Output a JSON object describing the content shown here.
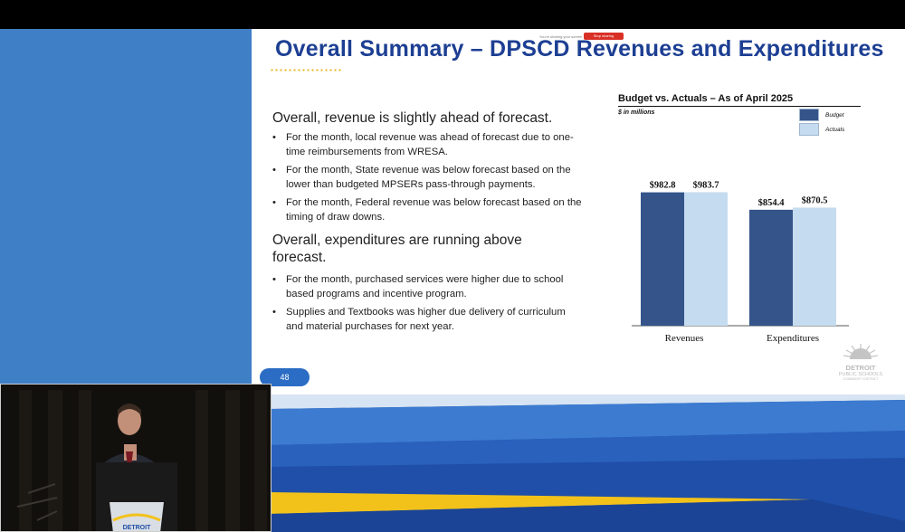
{
  "screen_share": {
    "notice": "You're sharing your screen",
    "stop_label": "Stop sharing"
  },
  "slide": {
    "title": "Overall Summary – DPSCD Revenues and Expenditures",
    "revenue_heading": "Overall, revenue is slightly ahead of forecast.",
    "revenue_bullets": [
      "For the month, local revenue was ahead of forecast due to one-time reimbursements from WRESA.",
      "For the month, State revenue was below forecast based on the lower than budgeted MPSERs pass-through payments.",
      "For the month, Federal revenue was below forecast based on the timing of draw downs."
    ],
    "expenditure_heading": "Overall, expenditures are running above forecast.",
    "expenditure_bullets": [
      "For the month, purchased services were higher due to school based programs and incentive program.",
      "Supplies and Textbooks was higher due delivery of curriculum and material purchases for next year."
    ],
    "page_number": "48",
    "logo": {
      "name": "DETROIT",
      "sub": "PUBLIC SCHOOLS",
      "tagline": "COMMUNITY DISTRICT"
    }
  },
  "chart_data": {
    "type": "bar",
    "title": "Budget vs. Actuals – As of April 2025",
    "subtitle": "$ in millions",
    "categories": [
      "Revenues",
      "Expenditures"
    ],
    "series": [
      {
        "name": "Budget",
        "values": [
          982.8,
          854.4
        ],
        "labels": [
          "$982.8",
          "$854.4"
        ],
        "color": "#34548a"
      },
      {
        "name": "Actuals",
        "values": [
          983.7,
          870.5
        ],
        "labels": [
          "$983.7",
          "$870.5"
        ],
        "color": "#c5dcf0"
      }
    ],
    "legend": "top-right",
    "grid": false
  },
  "video_feed": {
    "podium_label": "DETROIT"
  },
  "colors": {
    "title_blue": "#1d3f93",
    "accent_gold": "#e7b721",
    "side_blue": "#3f7fc6",
    "badge_blue": "#2b6cc4"
  }
}
